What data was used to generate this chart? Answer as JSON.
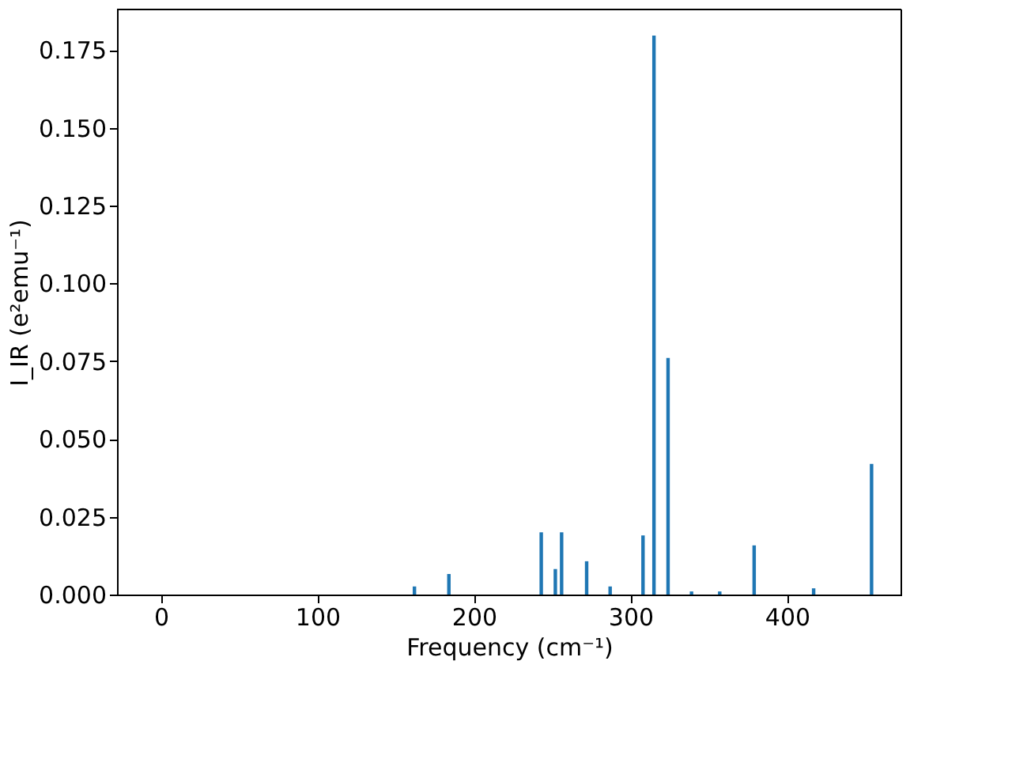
{
  "chart_data": {
    "type": "bar",
    "xlabel": "Frequency (cm⁻¹)",
    "ylabel": "I_IR (e²emu⁻¹)",
    "x": [
      162,
      184,
      243,
      252,
      256,
      272,
      287,
      308,
      315,
      324,
      339,
      357,
      379,
      417,
      454
    ],
    "series": [
      {
        "color": "#1f77b4",
        "values": [
          0.0026,
          0.0066,
          0.02,
          0.0082,
          0.02,
          0.0107,
          0.0026,
          0.019,
          0.1796,
          0.076,
          0.001,
          0.001,
          0.0158,
          0.002,
          0.042
        ]
      }
    ],
    "xlim": [
      -28,
      473
    ],
    "ylim": [
      0,
      0.188
    ],
    "xticks": [
      0,
      100,
      200,
      300,
      400
    ],
    "yticks": [
      {
        "value": 0,
        "label": "0.000"
      },
      {
        "value": 0.025,
        "label": "0.025"
      },
      {
        "value": 0.05,
        "label": "0.050"
      },
      {
        "value": 0.075,
        "label": "0.075"
      },
      {
        "value": 0.1,
        "label": "0.100"
      },
      {
        "value": 0.125,
        "label": "0.125"
      },
      {
        "value": 0.15,
        "label": "0.150"
      },
      {
        "value": 0.175,
        "label": "0.175"
      }
    ],
    "grid": false
  }
}
